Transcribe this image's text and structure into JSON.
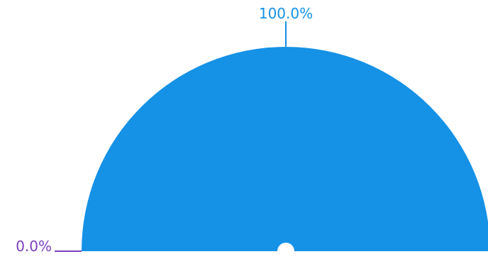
{
  "chart_data": {
    "type": "pie",
    "variant": "half-donut",
    "title": "",
    "slices": [
      {
        "label": "0.0%",
        "value": 0.0,
        "color": "#7b3fbf"
      },
      {
        "label": "100.0%",
        "value": 100.0,
        "color": "#1591e6"
      }
    ],
    "legend": "none"
  }
}
